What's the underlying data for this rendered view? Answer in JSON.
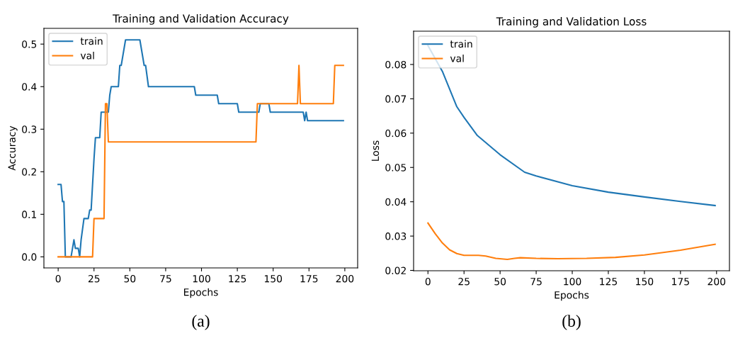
{
  "chart_data": [
    {
      "type": "line",
      "title": "Training and Validation Accuracy",
      "xlabel": "Epochs",
      "ylabel": "Accuracy",
      "xlim": [
        -9.95,
        208.95
      ],
      "xticks": [
        0,
        25,
        50,
        75,
        100,
        125,
        150,
        175,
        200
      ],
      "ylim": [
        -0.026,
        0.537
      ],
      "yticks": [
        {
          "value": 0,
          "label": "0.0"
        },
        0.1,
        0.2,
        0.3,
        0.4,
        0.5
      ],
      "grid": false,
      "legend": "top left",
      "annotations": [
        "(a)"
      ],
      "series": [
        {
          "name": "train",
          "color": "#1f77b4",
          "x": [
            0,
            2,
            3,
            4,
            5,
            9,
            11,
            12,
            14,
            15,
            16,
            18,
            21,
            22,
            23,
            25,
            26,
            29,
            30,
            35,
            36,
            37,
            42,
            43,
            44,
            47,
            57,
            60,
            61,
            63,
            95,
            96,
            111,
            112,
            125,
            126,
            140,
            141,
            147,
            148,
            171,
            172,
            173,
            174,
            199
          ],
          "values": [
            0.17,
            0.17,
            0.13,
            0.13,
            0,
            0,
            0.04,
            0.02,
            0.02,
            0,
            0.04,
            0.09,
            0.09,
            0.11,
            0.11,
            0.23,
            0.28,
            0.28,
            0.34,
            0.34,
            0.38,
            0.4,
            0.4,
            0.45,
            0.45,
            0.51,
            0.51,
            0.45,
            0.45,
            0.4,
            0.4,
            0.38,
            0.38,
            0.36,
            0.36,
            0.34,
            0.34,
            0.36,
            0.36,
            0.34,
            0.34,
            0.32,
            0.34,
            0.32,
            0.32
          ]
        },
        {
          "name": "val",
          "color": "#ff7f0e",
          "x": [
            0,
            24,
            25,
            32,
            33,
            34,
            35,
            138,
            139,
            167,
            168,
            169,
            192,
            193,
            199
          ],
          "values": [
            0,
            0,
            0.09,
            0.09,
            0.36,
            0.36,
            0.27,
            0.27,
            0.36,
            0.36,
            0.45,
            0.36,
            0.36,
            0.45,
            0.45
          ]
        }
      ]
    },
    {
      "type": "line",
      "title": "Training and Validation Loss",
      "xlabel": "Epochs",
      "ylabel": "Loss",
      "xlim": [
        -9.95,
        208.95
      ],
      "xticks": [
        0,
        25,
        50,
        75,
        100,
        125,
        150,
        175,
        200
      ],
      "ylim": [
        0.0199,
        0.0897
      ],
      "yticks": [
        0.02,
        0.03,
        0.04,
        0.05,
        0.06,
        0.07,
        0.08
      ],
      "grid": false,
      "legend": "top left",
      "annotations": [
        "(b)"
      ],
      "series": [
        {
          "name": "train",
          "color": "#1f77b4",
          "x": [
            0,
            10,
            20,
            25,
            34,
            50,
            67,
            75,
            100,
            125,
            150,
            175,
            199
          ],
          "values": [
            0.0855,
            0.078,
            0.0677,
            0.0646,
            0.0594,
            0.0537,
            0.0486,
            0.0475,
            0.0447,
            0.0428,
            0.0414,
            0.0401,
            0.0389
          ]
        },
        {
          "name": "val",
          "color": "#ff7f0e",
          "x": [
            0,
            5,
            10,
            15,
            20,
            25,
            35,
            40,
            47,
            55,
            60,
            64,
            75,
            90,
            110,
            130,
            150,
            175,
            199
          ],
          "values": [
            0.0338,
            0.0307,
            0.028,
            0.026,
            0.0249,
            0.0244,
            0.0244,
            0.0242,
            0.0235,
            0.0232,
            0.0235,
            0.0237,
            0.0235,
            0.0234,
            0.0235,
            0.0238,
            0.0245,
            0.0259,
            0.0276
          ]
        }
      ]
    }
  ]
}
